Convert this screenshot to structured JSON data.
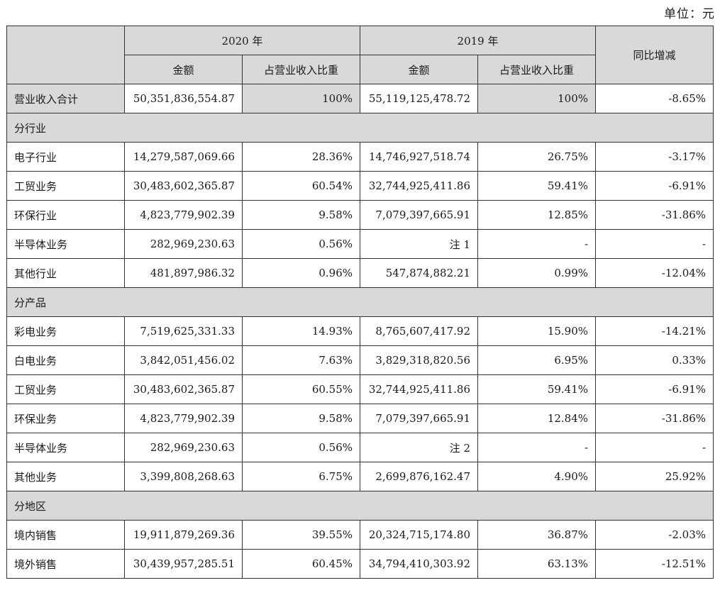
{
  "unit_label": "单位：元",
  "header": {
    "year_2020": "2020 年",
    "year_2019": "2019 年",
    "amount": "金额",
    "ratio": "占营业收入比重",
    "yoy": "同比增减"
  },
  "total": {
    "label": "营业收入合计",
    "amount_2020": "50,351,836,554.87",
    "ratio_2020": "100%",
    "amount_2019": "55,119,125,478.72",
    "ratio_2019": "100%",
    "yoy": "-8.65%"
  },
  "sections": [
    {
      "title": "分行业",
      "rows": [
        {
          "label": "电子行业",
          "amount_2020": "14,279,587,069.66",
          "ratio_2020": "28.36%",
          "amount_2019": "14,746,927,518.74",
          "ratio_2019": "26.75%",
          "yoy": "-3.17%"
        },
        {
          "label": "工贸业务",
          "amount_2020": "30,483,602,365.87",
          "ratio_2020": "60.54%",
          "amount_2019": "32,744,925,411.86",
          "ratio_2019": "59.41%",
          "yoy": "-6.91%"
        },
        {
          "label": "环保行业",
          "amount_2020": "4,823,779,902.39",
          "ratio_2020": "9.58%",
          "amount_2019": "7,079,397,665.91",
          "ratio_2019": "12.85%",
          "yoy": "-31.86%"
        },
        {
          "label": "半导体业务",
          "amount_2020": "282,969,230.63",
          "ratio_2020": "0.56%",
          "amount_2019": "注 1",
          "ratio_2019": "-",
          "yoy": "-"
        },
        {
          "label": "其他行业",
          "amount_2020": "481,897,986.32",
          "ratio_2020": "0.96%",
          "amount_2019": "547,874,882.21",
          "ratio_2019": "0.99%",
          "yoy": "-12.04%"
        }
      ]
    },
    {
      "title": "分产品",
      "rows": [
        {
          "label": "彩电业务",
          "amount_2020": "7,519,625,331.33",
          "ratio_2020": "14.93%",
          "amount_2019": "8,765,607,417.92",
          "ratio_2019": "15.90%",
          "yoy": "-14.21%"
        },
        {
          "label": "白电业务",
          "amount_2020": "3,842,051,456.02",
          "ratio_2020": "7.63%",
          "amount_2019": "3,829,318,820.56",
          "ratio_2019": "6.95%",
          "yoy": "0.33%"
        },
        {
          "label": "工贸业务",
          "amount_2020": "30,483,602,365.87",
          "ratio_2020": "60.55%",
          "amount_2019": "32,744,925,411.86",
          "ratio_2019": "59.41%",
          "yoy": "-6.91%"
        },
        {
          "label": "环保业务",
          "amount_2020": "4,823,779,902.39",
          "ratio_2020": "9.58%",
          "amount_2019": "7,079,397,665.91",
          "ratio_2019": "12.84%",
          "yoy": "-31.86%"
        },
        {
          "label": "半导体业务",
          "amount_2020": "282,969,230.63",
          "ratio_2020": "0.56%",
          "amount_2019": "注 2",
          "ratio_2019": "-",
          "yoy": "-"
        },
        {
          "label": "其他业务",
          "amount_2020": "3,399,808,268.63",
          "ratio_2020": "6.75%",
          "amount_2019": "2,699,876,162.47",
          "ratio_2019": "4.90%",
          "yoy": "25.92%"
        }
      ]
    },
    {
      "title": "分地区",
      "rows": [
        {
          "label": "境内销售",
          "amount_2020": "19,911,879,269.36",
          "ratio_2020": "39.55%",
          "amount_2019": "20,324,715,174.80",
          "ratio_2019": "36.87%",
          "yoy": "-2.03%"
        },
        {
          "label": "境外销售",
          "amount_2020": "30,439,957,285.51",
          "ratio_2020": "60.45%",
          "amount_2019": "34,794,410,303.92",
          "ratio_2019": "63.13%",
          "yoy": "-12.51%"
        }
      ]
    }
  ]
}
